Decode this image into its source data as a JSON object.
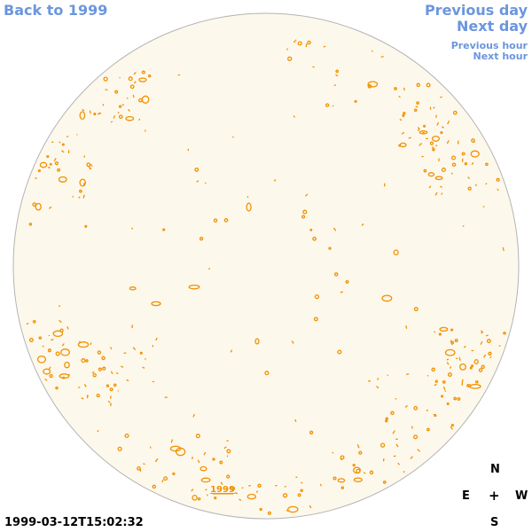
{
  "nav": {
    "back_label": "Back to 1999",
    "previous_day_label": "Previous day",
    "next_day_label": "Next day",
    "previous_hour_label": "Previous hour",
    "next_hour_label": "Next hour"
  },
  "disk": {
    "year_label": "1999",
    "fill_color": "#fdf8ec",
    "outline_color": "#b4b4b4",
    "contour_color": "#f29100"
  },
  "compass": {
    "north": "N",
    "south": "S",
    "east": "E",
    "west": "W",
    "center": "+"
  },
  "timestamp": "1999-03-12T15:02:32",
  "colors": {
    "link": "#6b96de",
    "text": "#000000"
  }
}
